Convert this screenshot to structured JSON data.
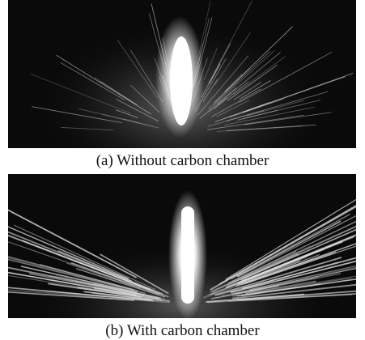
{
  "panels": [
    {
      "caption": "(a) Without carbon chamber"
    },
    {
      "caption": "(b) With carbon chamber"
    }
  ]
}
